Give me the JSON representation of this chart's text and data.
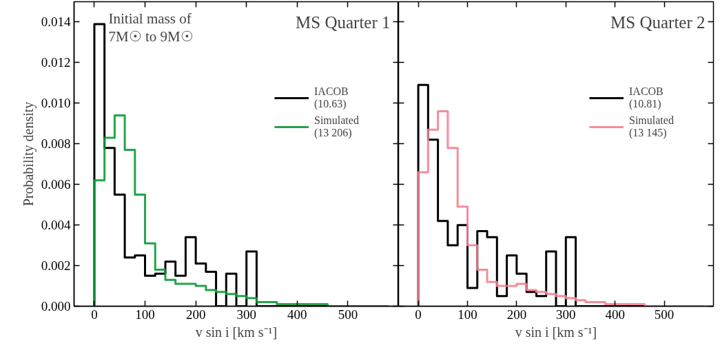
{
  "chart_data": [
    {
      "type": "histogram",
      "title": "MS Quarter 1",
      "xlabel": "v sin i [km s⁻¹]",
      "ylabel": "Probability density",
      "annotations": [
        "Initial mass of\n7M☉ to 9M☉"
      ],
      "bins": [
        0,
        20,
        40,
        60,
        80,
        100,
        120,
        140,
        160,
        180,
        200,
        220,
        240,
        260,
        280,
        300,
        320,
        340,
        360,
        380,
        400,
        420,
        440,
        460,
        480,
        500,
        520,
        540,
        560,
        580
      ],
      "series": [
        {
          "name": "IACOB\n(10.63)",
          "color": "#000000",
          "values": [
            0.0139,
            0.0078,
            0.0055,
            0.0024,
            0.0025,
            0.0015,
            0.0016,
            0.0022,
            0.0015,
            0.0034,
            0.0021,
            0.0017,
            0,
            0.0016,
            0,
            0.0027,
            0,
            0,
            0,
            0,
            0,
            0,
            0,
            0,
            0,
            0,
            0,
            0,
            0
          ]
        },
        {
          "name": "Simulated\n(13 206)",
          "color": "#0a9a35",
          "values": [
            0.0062,
            0.0083,
            0.0094,
            0.0077,
            0.0055,
            0.0031,
            0.0018,
            0.0013,
            0.0011,
            0.0011,
            0.001,
            0.0008,
            0.0007,
            0.0006,
            0.0005,
            0.0004,
            0.0002,
            0.0002,
            0.0001,
            0.0001,
            0.0001,
            0.0001,
            0.0001,
            0,
            0,
            0,
            0,
            0,
            0
          ]
        }
      ],
      "xlim": [
        -40,
        600
      ],
      "ylim": [
        0,
        0.015
      ],
      "xticks": [
        0,
        100,
        200,
        300,
        400,
        500
      ],
      "yticks": [
        {
          "value": 0,
          "label": "0.000"
        },
        {
          "value": 0.002,
          "label": "0.002"
        },
        {
          "value": 0.004,
          "label": "0.004"
        },
        {
          "value": 0.006,
          "label": "0.006"
        },
        {
          "value": 0.008,
          "label": "0.008"
        },
        {
          "value": 0.01,
          "label": "0.010"
        },
        {
          "value": 0.012,
          "label": "0.012"
        },
        {
          "value": 0.014,
          "label": "0.014"
        }
      ],
      "legend": "top right"
    },
    {
      "type": "histogram",
      "title": "MS Quarter 2",
      "xlabel": "v sin i [km s⁻¹]",
      "bins": [
        0,
        20,
        40,
        60,
        80,
        100,
        120,
        140,
        160,
        180,
        200,
        220,
        240,
        260,
        280,
        300,
        320,
        340,
        360,
        380,
        400,
        420,
        440,
        460,
        480,
        500,
        520,
        540,
        560,
        580
      ],
      "series": [
        {
          "name": "IACOB\n(10.81)",
          "color": "#000000",
          "values": [
            0.0109,
            0.0082,
            0.0042,
            0.003,
            0.004,
            0.0009,
            0.0037,
            0.0034,
            0.0005,
            0.0025,
            0.0016,
            0.0007,
            0.0005,
            0.0027,
            0,
            0.0034,
            0,
            0,
            0,
            0,
            0,
            0,
            0,
            0,
            0,
            0,
            0,
            0,
            0
          ]
        },
        {
          "name": "Simulated\n(13 145)",
          "color": "#f4808f",
          "values": [
            0.0066,
            0.0087,
            0.0096,
            0.0078,
            0.0049,
            0.003,
            0.0018,
            0.0012,
            0.001,
            0.001,
            0.0011,
            0.0008,
            0.0007,
            0.0006,
            0.0005,
            0.0004,
            0.0003,
            0.0002,
            0.0002,
            0.0001,
            0.0001,
            0.0001,
            0.0001,
            0,
            0,
            0,
            0,
            0,
            0
          ]
        }
      ],
      "xlim": [
        -40,
        600
      ],
      "ylim": [
        0,
        0.015
      ],
      "xticks": [
        0,
        100,
        200,
        300,
        400,
        500
      ],
      "yticks": [
        0,
        0.002,
        0.004,
        0.006,
        0.008,
        0.01,
        0.012,
        0.014
      ],
      "tick_labels": "x",
      "legend": "top right"
    }
  ]
}
